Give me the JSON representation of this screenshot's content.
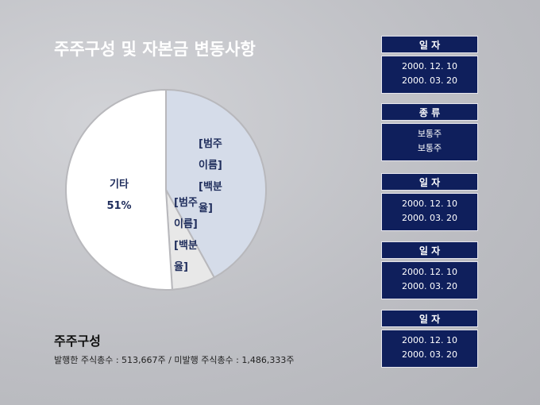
{
  "chart_data": {
    "type": "pie",
    "title": "주주구성 및 자본금 변동사항",
    "categories": [
      "[범주 이름]",
      "[범주 이름]",
      "기타"
    ],
    "values": [
      42,
      7,
      51
    ],
    "value_labels": [
      "[백분율]",
      "[백분율]",
      "51%"
    ],
    "colors": [
      "#d5dce9",
      "#e8e8e8",
      "#ffffff"
    ]
  },
  "summary": {
    "heading": "주주구성",
    "note": "발행한 주식총수 : 513,667주 / 미발행 주식총수 : 1,486,333주"
  },
  "panels": [
    {
      "header": "일 자",
      "lines": [
        "2000. 12. 10",
        "2000. 03. 20"
      ]
    },
    {
      "header": "종 류",
      "lines": [
        "보통주",
        "보통주"
      ]
    },
    {
      "header": "일 자",
      "lines": [
        "2000. 12. 10",
        "2000. 03. 20"
      ]
    },
    {
      "header": "일 자",
      "lines": [
        "2000. 12. 10",
        "2000. 03. 20"
      ]
    },
    {
      "header": "일 자",
      "lines": [
        "2000. 12. 10",
        "2000. 03. 20"
      ]
    }
  ]
}
